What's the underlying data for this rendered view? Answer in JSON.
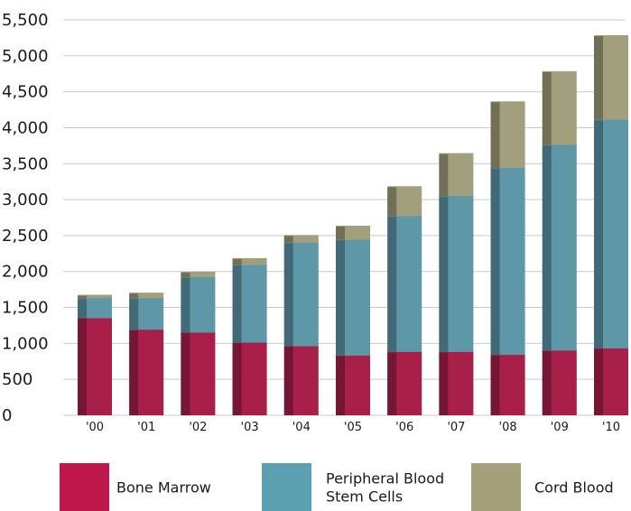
{
  "chart_data": {
    "type": "bar",
    "stacked": true,
    "categories": [
      "'00",
      "'01",
      "'02",
      "'03",
      "'04",
      "'05",
      "'06",
      "'07",
      "'08",
      "'09",
      "'10"
    ],
    "series": [
      {
        "name": "Bone Marrow",
        "color": "#a8204a",
        "values": [
          1350,
          1190,
          1150,
          1010,
          960,
          830,
          880,
          880,
          840,
          900,
          930
        ]
      },
      {
        "name": "Peripheral Blood Stem Cells",
        "color": "#5e97a8",
        "values": [
          280,
          440,
          770,
          1080,
          1440,
          1610,
          1890,
          2170,
          2600,
          2860,
          3180
        ]
      },
      {
        "name": "Cord Blood",
        "color": "#a2a07c",
        "values": [
          40,
          70,
          70,
          90,
          100,
          190,
          410,
          590,
          920,
          1020,
          1170
        ]
      }
    ],
    "legend_labels": [
      [
        "Bone Marrow"
      ],
      [
        "Peripheral Blood",
        "Stem Cells"
      ],
      [
        "Cord Blood"
      ]
    ],
    "legend_swatch_colors": [
      "#c0184a",
      "#5aa0b0",
      "#a3a07a"
    ],
    "y_ticks": [
      "0",
      "500",
      "1,000",
      "1,500",
      "2,000",
      "2,500",
      "3,000",
      "3,500",
      "4,000",
      "4,500",
      "5,000",
      "5,500"
    ],
    "ylim": [
      0,
      5500
    ],
    "grid": true,
    "legend_position": "bottom",
    "title": "",
    "xlabel": "",
    "ylabel": ""
  }
}
